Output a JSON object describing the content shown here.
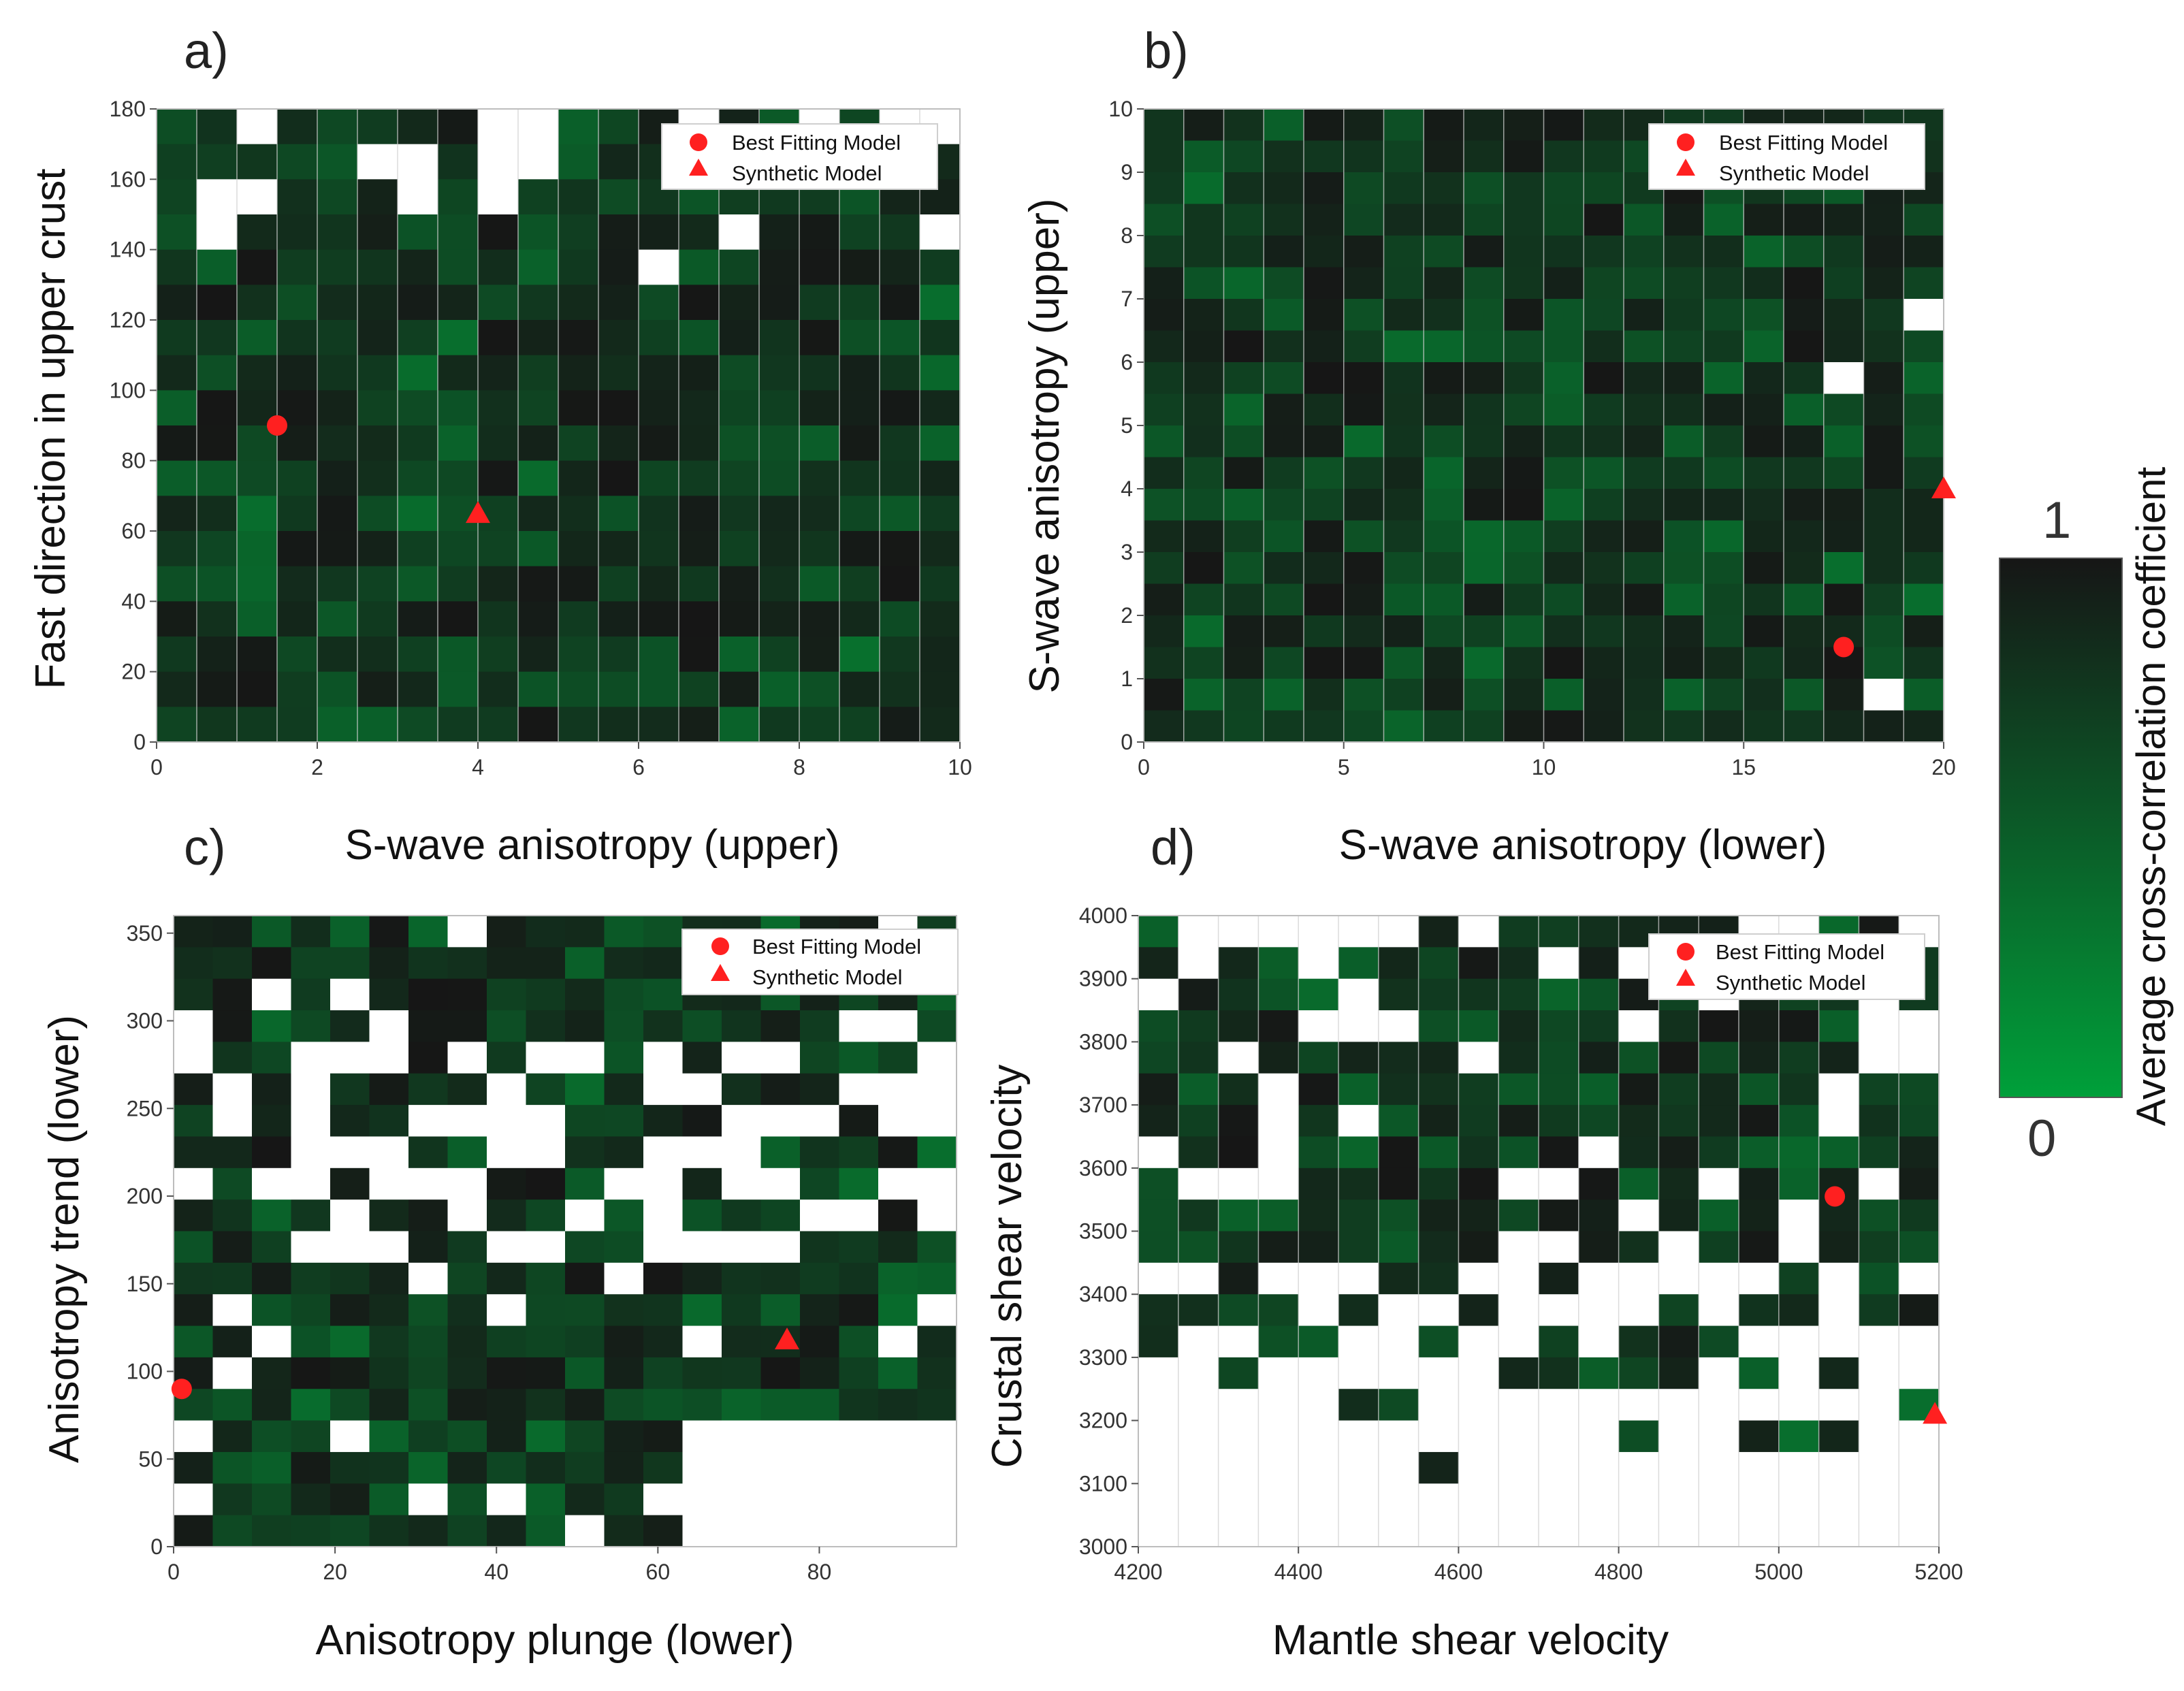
{
  "colorbar": {
    "label": "Average cross-correlation coefficient",
    "max_label": "1",
    "min_label": "0",
    "colors": [
      "#00a03a",
      "#161616"
    ]
  },
  "legend": {
    "best_label": "Best Fitting Model",
    "synthetic_label": "Synthetic Model",
    "marker_color": "#ff2020"
  },
  "chart_data": [
    {
      "id": "a",
      "type": "heatmap",
      "panel_label": "a)",
      "xlabel": "S-wave anisotropy (upper)",
      "ylabel": "Fast direction in upper crust",
      "xlim": [
        0,
        10
      ],
      "ylim": [
        0,
        180
      ],
      "xticks": [
        0,
        2,
        4,
        6,
        8,
        10
      ],
      "yticks": [
        0,
        20,
        40,
        60,
        80,
        100,
        120,
        140,
        160,
        180
      ],
      "ncols": 20,
      "nrows": 18,
      "best_fit": {
        "x": 1.5,
        "y": 90
      },
      "synthetic": {
        "x": 4,
        "y": 65
      },
      "grid_lines": "vertical"
    },
    {
      "id": "b",
      "type": "heatmap",
      "panel_label": "b)",
      "xlabel": "S-wave anisotropy (lower)",
      "ylabel": "S-wave anisotropy (upper)",
      "xlim": [
        0,
        20
      ],
      "ylim": [
        0,
        10
      ],
      "xticks": [
        0,
        5,
        10,
        15,
        20
      ],
      "yticks": [
        0,
        1,
        2,
        3,
        4,
        5,
        6,
        7,
        8,
        9,
        10
      ],
      "ncols": 20,
      "nrows": 20,
      "best_fit": {
        "x": 17.5,
        "y": 1.5
      },
      "synthetic": {
        "x": 20,
        "y": 4
      },
      "grid_lines": "vertical"
    },
    {
      "id": "c",
      "type": "heatmap",
      "panel_label": "c)",
      "xlabel": "Anisotropy plunge (lower)",
      "ylabel": "Anisotropy trend (lower)",
      "xlim": [
        0,
        97
      ],
      "ylim": [
        0,
        360
      ],
      "xticks": [
        0,
        20,
        40,
        60,
        80
      ],
      "yticks": [
        0,
        50,
        100,
        150,
        200,
        250,
        300,
        350
      ],
      "ncols": 20,
      "nrows": 20,
      "best_fit": {
        "x": 1,
        "y": 90
      },
      "synthetic": {
        "x": 76,
        "y": 118
      },
      "grid_lines": "none"
    },
    {
      "id": "d",
      "type": "heatmap",
      "panel_label": "d)",
      "xlabel": "Mantle shear velocity",
      "ylabel": "Crustal shear velocity",
      "xlim": [
        4200,
        5200
      ],
      "ylim": [
        3000,
        4000
      ],
      "xticks": [
        4200,
        4400,
        4600,
        4800,
        5000,
        5200
      ],
      "yticks": [
        3000,
        3100,
        3200,
        3300,
        3400,
        3500,
        3600,
        3700,
        3800,
        3900,
        4000
      ],
      "ncols": 20,
      "nrows": 20,
      "best_fit": {
        "x": 5070,
        "y": 3555
      },
      "synthetic": {
        "x": 5195,
        "y": 3210
      },
      "grid_lines": "vertical"
    }
  ]
}
